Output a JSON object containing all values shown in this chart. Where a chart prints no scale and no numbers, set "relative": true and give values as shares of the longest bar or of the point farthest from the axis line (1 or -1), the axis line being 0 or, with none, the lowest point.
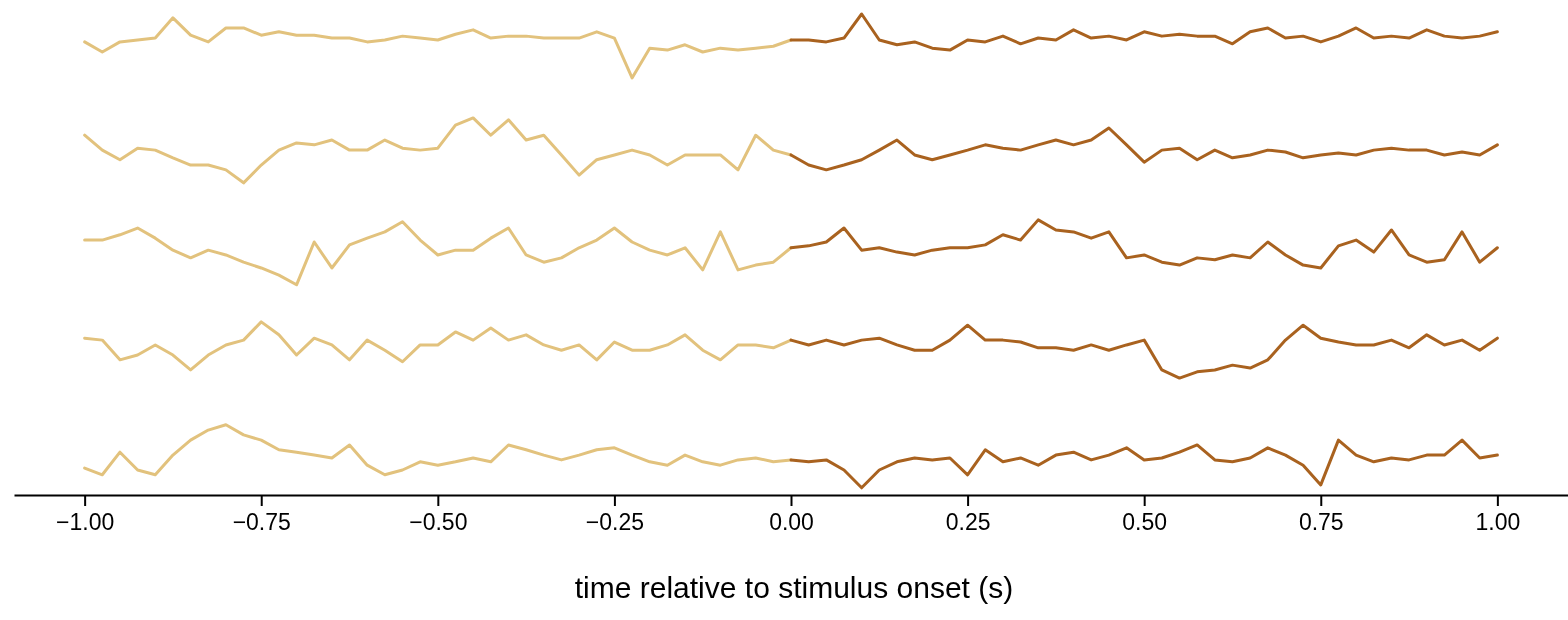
{
  "chart_data": {
    "type": "line",
    "xlabel": "time relative to stimulus onset (s)",
    "relative": true,
    "xlim": [
      -1.1,
      1.1
    ],
    "xticks": [
      {
        "value": -1,
        "label": "−1.00"
      },
      {
        "value": -0.75,
        "label": "−0.75"
      },
      {
        "value": -0.5,
        "label": "−0.50"
      },
      {
        "value": -0.25,
        "label": "−0.25"
      },
      {
        "value": 0,
        "label": "0.00"
      },
      {
        "value": 0.25,
        "label": "0.25"
      },
      {
        "value": 0.5,
        "label": "0.50"
      },
      {
        "value": 0.75,
        "label": "0.75"
      },
      {
        "value": 1,
        "label": "1.00"
      }
    ],
    "x": [
      -1,
      -0.975,
      -0.95,
      -0.925,
      -0.9,
      -0.875,
      -0.85,
      -0.825,
      -0.8,
      -0.775,
      -0.75,
      -0.725,
      -0.7,
      -0.675,
      -0.65,
      -0.625,
      -0.6,
      -0.575,
      -0.55,
      -0.525,
      -0.5,
      -0.475,
      -0.45,
      -0.425,
      -0.4,
      -0.375,
      -0.35,
      -0.325,
      -0.3,
      -0.275,
      -0.25,
      -0.225,
      -0.2,
      -0.175,
      -0.15,
      -0.125,
      -0.1,
      -0.075,
      -0.05,
      -0.025,
      0,
      0.025,
      0.05,
      0.075,
      0.1,
      0.125,
      0.15,
      0.175,
      0.2,
      0.225,
      0.25,
      0.275,
      0.3,
      0.325,
      0.35,
      0.375,
      0.4,
      0.425,
      0.45,
      0.475,
      0.5,
      0.525,
      0.55,
      0.575,
      0.6,
      0.625,
      0.65,
      0.675,
      0.7,
      0.725,
      0.75,
      0.775,
      0.8,
      0.825,
      0.85,
      0.875,
      0.9,
      0.925,
      0.95,
      0.975,
      1
    ],
    "series": [
      {
        "color": "#e2c27d",
        "values": [
          0.942,
          0.921,
          0.942,
          0.946,
          0.95,
          0.992,
          0.956,
          0.942,
          0.971,
          0.971,
          0.956,
          0.963,
          0.956,
          0.956,
          0.95,
          0.95,
          0.942,
          0.946,
          0.954,
          0.95,
          0.946,
          0.958,
          0.967,
          0.95,
          0.954,
          0.954,
          0.95,
          0.95,
          0.95,
          0.963,
          0.95,
          0.867,
          0.929,
          0.925,
          0.936,
          0.921,
          0.929,
          0.925,
          0.929,
          0.933,
          0.946,
          null,
          null,
          null,
          null,
          null,
          null,
          null,
          null,
          null,
          null,
          null,
          null,
          null,
          null,
          null,
          null,
          null,
          null,
          null,
          null,
          null,
          null,
          null,
          null,
          null,
          null,
          null,
          null,
          null,
          null,
          null,
          null,
          null,
          null,
          null,
          null,
          null,
          null,
          null,
          null
        ]
      },
      {
        "color": "#a9621f",
        "values": [
          null,
          null,
          null,
          null,
          null,
          null,
          null,
          null,
          null,
          null,
          null,
          null,
          null,
          null,
          null,
          null,
          null,
          null,
          null,
          null,
          null,
          null,
          null,
          null,
          null,
          null,
          null,
          null,
          null,
          null,
          null,
          null,
          null,
          null,
          null,
          null,
          null,
          null,
          null,
          null,
          0.946,
          0.946,
          0.942,
          0.95,
          1,
          0.946,
          0.936,
          0.942,
          0.929,
          0.925,
          0.946,
          0.942,
          0.954,
          0.938,
          0.95,
          0.946,
          0.967,
          0.95,
          0.954,
          0.946,
          0.963,
          0.954,
          0.958,
          0.954,
          0.954,
          0.938,
          0.963,
          0.971,
          0.95,
          0.954,
          0.942,
          0.954,
          0.971,
          0.95,
          0.954,
          0.95,
          0.967,
          0.954,
          0.95,
          0.954,
          0.963
        ]
      },
      {
        "color": "#e2c27d",
        "values": [
          0.748,
          0.717,
          0.697,
          0.721,
          0.717,
          0.701,
          0.686,
          0.686,
          0.676,
          0.649,
          0.686,
          0.717,
          0.732,
          0.728,
          0.738,
          0.717,
          0.717,
          0.738,
          0.721,
          0.717,
          0.721,
          0.769,
          0.784,
          0.748,
          0.78,
          0.738,
          0.748,
          0.707,
          0.665,
          0.697,
          0.707,
          0.717,
          0.707,
          0.686,
          0.707,
          0.707,
          0.707,
          0.676,
          0.748,
          0.717,
          0.707,
          null,
          null,
          null,
          null,
          null,
          null,
          null,
          null,
          null,
          null,
          null,
          null,
          null,
          null,
          null,
          null,
          null,
          null,
          null,
          null,
          null,
          null,
          null,
          null,
          null,
          null,
          null,
          null,
          null,
          null,
          null,
          null,
          null,
          null,
          null,
          null,
          null,
          null,
          null,
          null
        ]
      },
      {
        "color": "#a9621f",
        "values": [
          null,
          null,
          null,
          null,
          null,
          null,
          null,
          null,
          null,
          null,
          null,
          null,
          null,
          null,
          null,
          null,
          null,
          null,
          null,
          null,
          null,
          null,
          null,
          null,
          null,
          null,
          null,
          null,
          null,
          null,
          null,
          null,
          null,
          null,
          null,
          null,
          null,
          null,
          null,
          null,
          0.707,
          0.686,
          0.676,
          0.686,
          0.697,
          0.717,
          0.738,
          0.707,
          0.697,
          0.707,
          0.717,
          0.728,
          0.721,
          0.717,
          0.728,
          0.738,
          0.728,
          0.738,
          0.763,
          0.728,
          0.692,
          0.717,
          0.721,
          0.697,
          0.717,
          0.701,
          0.707,
          0.717,
          0.713,
          0.701,
          0.707,
          0.711,
          0.707,
          0.717,
          0.721,
          0.717,
          0.717,
          0.707,
          0.713,
          0.707,
          0.728
        ]
      },
      {
        "color": "#e2c27d",
        "values": [
          0.53,
          0.53,
          0.541,
          0.555,
          0.534,
          0.509,
          0.493,
          0.509,
          0.499,
          0.484,
          0.472,
          0.457,
          0.437,
          0.526,
          0.472,
          0.52,
          0.534,
          0.547,
          0.568,
          0.53,
          0.499,
          0.509,
          0.509,
          0.534,
          0.555,
          0.499,
          0.484,
          0.493,
          0.514,
          0.53,
          0.555,
          0.526,
          0.509,
          0.499,
          0.514,
          0.468,
          0.547,
          0.468,
          0.478,
          0.484,
          0.514,
          null,
          null,
          null,
          null,
          null,
          null,
          null,
          null,
          null,
          null,
          null,
          null,
          null,
          null,
          null,
          null,
          null,
          null,
          null,
          null,
          null,
          null,
          null,
          null,
          null,
          null,
          null,
          null,
          null,
          null,
          null,
          null,
          null,
          null,
          null,
          null,
          null,
          null,
          null,
          null
        ]
      },
      {
        "color": "#a9621f",
        "values": [
          null,
          null,
          null,
          null,
          null,
          null,
          null,
          null,
          null,
          null,
          null,
          null,
          null,
          null,
          null,
          null,
          null,
          null,
          null,
          null,
          null,
          null,
          null,
          null,
          null,
          null,
          null,
          null,
          null,
          null,
          null,
          null,
          null,
          null,
          null,
          null,
          null,
          null,
          null,
          null,
          0.514,
          0.518,
          0.526,
          0.555,
          0.509,
          0.514,
          0.505,
          0.499,
          0.509,
          0.514,
          0.514,
          0.52,
          0.541,
          0.53,
          0.572,
          0.551,
          0.547,
          0.534,
          0.547,
          0.493,
          0.499,
          0.484,
          0.478,
          0.493,
          0.489,
          0.499,
          0.493,
          0.526,
          0.499,
          0.478,
          0.472,
          0.518,
          0.53,
          0.505,
          0.551,
          0.499,
          0.484,
          0.489,
          0.547,
          0.484,
          0.514
        ]
      },
      {
        "color": "#e2c27d",
        "values": [
          0.326,
          0.322,
          0.281,
          0.291,
          0.312,
          0.291,
          0.26,
          0.291,
          0.312,
          0.322,
          0.36,
          0.333,
          0.291,
          0.326,
          0.312,
          0.281,
          0.322,
          0.301,
          0.277,
          0.312,
          0.312,
          0.339,
          0.322,
          0.347,
          0.322,
          0.333,
          0.312,
          0.301,
          0.312,
          0.281,
          0.318,
          0.301,
          0.301,
          0.312,
          0.333,
          0.301,
          0.281,
          0.312,
          0.312,
          0.306,
          0.322,
          null,
          null,
          null,
          null,
          null,
          null,
          null,
          null,
          null,
          null,
          null,
          null,
          null,
          null,
          null,
          null,
          null,
          null,
          null,
          null,
          null,
          null,
          null,
          null,
          null,
          null,
          null,
          null,
          null,
          null,
          null,
          null,
          null,
          null,
          null,
          null,
          null,
          null,
          null,
          null
        ]
      },
      {
        "color": "#a9621f",
        "values": [
          null,
          null,
          null,
          null,
          null,
          null,
          null,
          null,
          null,
          null,
          null,
          null,
          null,
          null,
          null,
          null,
          null,
          null,
          null,
          null,
          null,
          null,
          null,
          null,
          null,
          null,
          null,
          null,
          null,
          null,
          null,
          null,
          null,
          null,
          null,
          null,
          null,
          null,
          null,
          null,
          0.322,
          0.312,
          0.322,
          0.312,
          0.322,
          0.326,
          0.312,
          0.301,
          0.301,
          0.322,
          0.353,
          0.322,
          0.322,
          0.318,
          0.306,
          0.306,
          0.301,
          0.312,
          0.301,
          0.312,
          0.322,
          0.26,
          0.243,
          0.256,
          0.26,
          0.27,
          0.264,
          0.281,
          0.322,
          0.353,
          0.326,
          0.318,
          0.312,
          0.312,
          0.322,
          0.306,
          0.333,
          0.312,
          0.322,
          0.301,
          0.326
        ]
      },
      {
        "color": "#e2c27d",
        "values": [
          0.056,
          0.042,
          0.089,
          0.052,
          0.042,
          0.083,
          0.114,
          0.135,
          0.146,
          0.125,
          0.114,
          0.094,
          0.089,
          0.083,
          0.077,
          0.104,
          0.062,
          0.042,
          0.052,
          0.069,
          0.062,
          0.069,
          0.077,
          0.069,
          0.104,
          0.094,
          0.083,
          0.073,
          0.083,
          0.094,
          0.098,
          0.083,
          0.069,
          0.062,
          0.083,
          0.069,
          0.062,
          0.073,
          0.077,
          0.069,
          0.073,
          null,
          null,
          null,
          null,
          null,
          null,
          null,
          null,
          null,
          null,
          null,
          null,
          null,
          null,
          null,
          null,
          null,
          null,
          null,
          null,
          null,
          null,
          null,
          null,
          null,
          null,
          null,
          null,
          null,
          null,
          null,
          null,
          null,
          null,
          null,
          null,
          null,
          null,
          null,
          null
        ]
      },
      {
        "color": "#a9621f",
        "values": [
          null,
          null,
          null,
          null,
          null,
          null,
          null,
          null,
          null,
          null,
          null,
          null,
          null,
          null,
          null,
          null,
          null,
          null,
          null,
          null,
          null,
          null,
          null,
          null,
          null,
          null,
          null,
          null,
          null,
          null,
          null,
          null,
          null,
          null,
          null,
          null,
          null,
          null,
          null,
          null,
          0.073,
          0.069,
          0.073,
          0.052,
          0.015,
          0.052,
          0.069,
          0.077,
          0.073,
          0.077,
          0.042,
          0.094,
          0.069,
          0.077,
          0.062,
          0.083,
          0.089,
          0.073,
          0.083,
          0.098,
          0.073,
          0.077,
          0.089,
          0.104,
          0.073,
          0.069,
          0.077,
          0.098,
          0.083,
          0.062,
          0.021,
          0.114,
          0.083,
          0.069,
          0.077,
          0.073,
          0.083,
          0.083,
          0.114,
          0.077,
          0.083
        ]
      }
    ]
  }
}
